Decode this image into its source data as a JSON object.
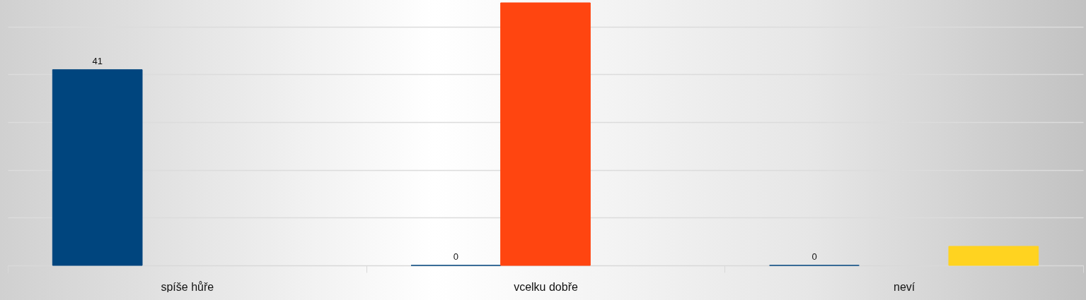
{
  "chart_data": {
    "type": "bar",
    "categories": [
      "spíše hůře",
      "vcelku dobře",
      "neví"
    ],
    "series": [
      {
        "color": "#00457e",
        "values": [
          41,
          0,
          0
        ],
        "value_labels": [
          "41",
          "0",
          "0"
        ]
      },
      {
        "color": "#ff4510",
        "values": [
          null,
          55,
          null
        ]
      },
      {
        "color": "#ffd320",
        "values": [
          null,
          null,
          4
        ]
      }
    ],
    "yticks": [
      {
        "value": 0,
        "label": null
      },
      {
        "value": 10,
        "label": null
      },
      {
        "value": 20,
        "label": null
      },
      {
        "value": 30,
        "label": null
      },
      {
        "value": 40,
        "label": null
      },
      {
        "value": 50,
        "label": null
      }
    ],
    "grid": "y",
    "tick_labels": "x",
    "legend": false
  }
}
